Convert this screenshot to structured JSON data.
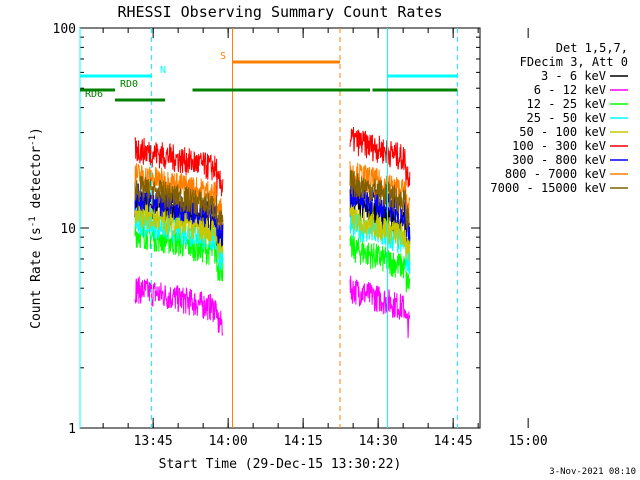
{
  "chart_data": {
    "type": "line",
    "title": "RHESSI Observing Summary Count Rates",
    "xlabel": "Start Time (29-Dec-15 13:30:22)",
    "ylabel_main": "Count Rate (s",
    "ylabel_sup1": "-1",
    "ylabel_mid": " detector",
    "ylabel_sup2": "-1",
    "ylabel_end": ")",
    "footer": "3-Nov-2021 08:10",
    "yscale": "log",
    "ylim": [
      1,
      100
    ],
    "xlim_minutes": [
      0,
      80
    ],
    "y_ticks": [
      {
        "v": 1,
        "label": "1"
      },
      {
        "v": 10,
        "label": "10"
      },
      {
        "v": 100,
        "label": "100"
      }
    ],
    "x_ticks": [
      {
        "m": 14.63,
        "label": "13:45"
      },
      {
        "m": 29.63,
        "label": "14:00"
      },
      {
        "m": 44.63,
        "label": "14:15"
      },
      {
        "m": 59.63,
        "label": "14:30"
      },
      {
        "m": 74.63,
        "label": "14:45"
      },
      {
        "m": 89.63,
        "label": "15:00"
      }
    ],
    "legend_header": [
      "Det 1,5,7,",
      "FDecim 3, Att 0"
    ],
    "legend_placement": "right, outside plot",
    "series": [
      {
        "name": "3 - 6 keV",
        "color": "#000000",
        "levels": [
          13.5,
          13.0
        ]
      },
      {
        "name": "6 - 12 keV",
        "color": "#ff00ff",
        "levels": [
          5.0,
          5.0
        ]
      },
      {
        "name": "12 - 25 keV",
        "color": "#00ff00",
        "levels": [
          9.5,
          8.0
        ]
      },
      {
        "name": "25 - 50 keV",
        "color": "#00ffff",
        "levels": [
          11.0,
          10.5
        ]
      },
      {
        "name": "50 - 100 keV",
        "color": "#c8c800",
        "levels": [
          12.0,
          11.5
        ]
      },
      {
        "name": "100 - 300 keV",
        "color": "#ff0000",
        "levels": [
          25.0,
          28.0
        ]
      },
      {
        "name": "300 - 800 keV",
        "color": "#0000ff",
        "levels": [
          14.5,
          15.0
        ]
      },
      {
        "name": "800 - 7000 keV",
        "color": "#ff8000",
        "levels": [
          18.5,
          19.0
        ]
      },
      {
        "name": "7000 - 15000 keV",
        "color": "#806000",
        "levels": [
          16.0,
          17.0
        ]
      }
    ],
    "segments_minutes": [
      [
        11.0,
        28.6
      ],
      [
        54.0,
        66.0
      ]
    ],
    "flags": [
      {
        "label": "N",
        "color": "#00ffff",
        "y": 76,
        "spans": [
          [
            0,
            14.3
          ],
          [
            61.5,
            75.5
          ]
        ],
        "label_at": 16.0
      },
      {
        "label": "RD0",
        "color": "#008000",
        "y": 69,
        "spans": [
          [
            0,
            7.0
          ],
          [
            22.5,
            52.0
          ],
          [
            52.0,
            58.0
          ],
          [
            58.5,
            75.5
          ]
        ],
        "label_at": 8.0
      },
      {
        "label": "RD6",
        "color": "#008000",
        "y": 64,
        "spans": [
          [
            7.0,
            17.0
          ]
        ],
        "label_at": 1.0
      },
      {
        "label": "S",
        "color": "#ff8000",
        "y": 83,
        "spans": [
          [
            30.5,
            52.0
          ]
        ],
        "label_at": 28.0
      }
    ],
    "vlines": [
      {
        "m": 0.0,
        "color": "#00ffff",
        "dash": false
      },
      {
        "m": 14.3,
        "color": "#00ffff",
        "dash": true
      },
      {
        "m": 30.5,
        "color": "#ff8000",
        "dash": false
      },
      {
        "m": 52.0,
        "color": "#ff8000",
        "dash": true
      },
      {
        "m": 61.5,
        "color": "#00ffff",
        "dash": false
      },
      {
        "m": 75.5,
        "color": "#00ffff",
        "dash": true
      }
    ]
  }
}
